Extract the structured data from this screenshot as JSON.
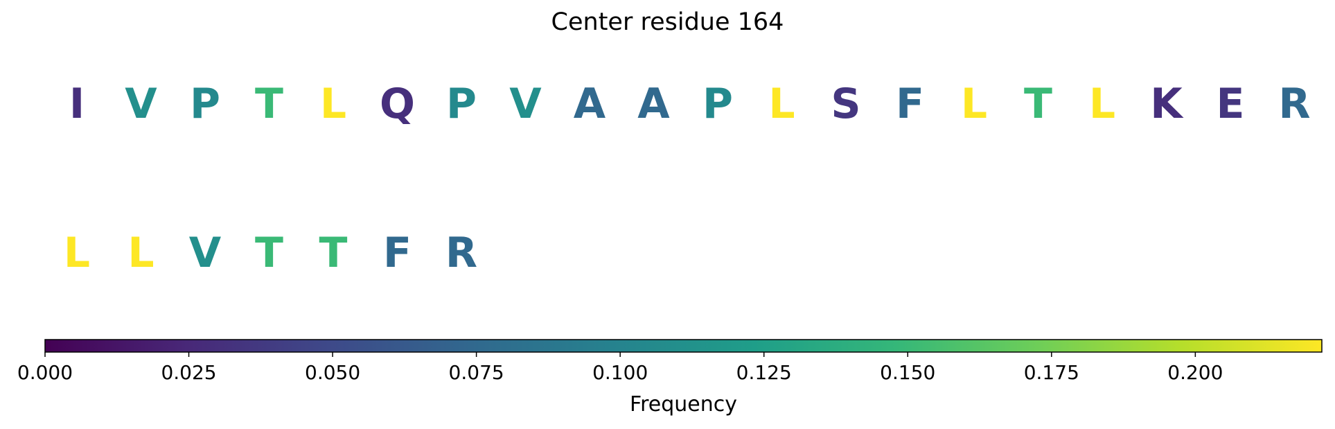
{
  "chart_data": {
    "type": "sequence-frequency",
    "title": "Center residue 164",
    "residues": [
      {
        "letter": "I",
        "frequency": 0.03
      },
      {
        "letter": "V",
        "frequency": 0.11
      },
      {
        "letter": "P",
        "frequency": 0.105
      },
      {
        "letter": "T",
        "frequency": 0.15
      },
      {
        "letter": "L",
        "frequency": 0.222
      },
      {
        "letter": "Q",
        "frequency": 0.03
      },
      {
        "letter": "P",
        "frequency": 0.105
      },
      {
        "letter": "V",
        "frequency": 0.11
      },
      {
        "letter": "A",
        "frequency": 0.075
      },
      {
        "letter": "A",
        "frequency": 0.075
      },
      {
        "letter": "P",
        "frequency": 0.105
      },
      {
        "letter": "L",
        "frequency": 0.222
      },
      {
        "letter": "S",
        "frequency": 0.035
      },
      {
        "letter": "F",
        "frequency": 0.075
      },
      {
        "letter": "L",
        "frequency": 0.222
      },
      {
        "letter": "T",
        "frequency": 0.15
      },
      {
        "letter": "L",
        "frequency": 0.222
      },
      {
        "letter": "K",
        "frequency": 0.03
      },
      {
        "letter": "E",
        "frequency": 0.035
      },
      {
        "letter": "R",
        "frequency": 0.075
      },
      {
        "letter": "L",
        "frequency": 0.222
      },
      {
        "letter": "L",
        "frequency": 0.222
      },
      {
        "letter": "V",
        "frequency": 0.11
      },
      {
        "letter": "T",
        "frequency": 0.15
      },
      {
        "letter": "T",
        "frequency": 0.15
      },
      {
        "letter": "F",
        "frequency": 0.075
      },
      {
        "letter": "R",
        "frequency": 0.075
      }
    ],
    "colorbar": {
      "label": "Frequency",
      "range": [
        0,
        0.222
      ],
      "ticks": [
        0.0,
        0.025,
        0.05,
        0.075,
        0.1,
        0.125,
        0.15,
        0.175,
        0.2
      ],
      "tick_labels": [
        "0.000",
        "0.025",
        "0.050",
        "0.075",
        "0.100",
        "0.125",
        "0.150",
        "0.175",
        "0.200"
      ],
      "colormap": "viridis"
    }
  }
}
